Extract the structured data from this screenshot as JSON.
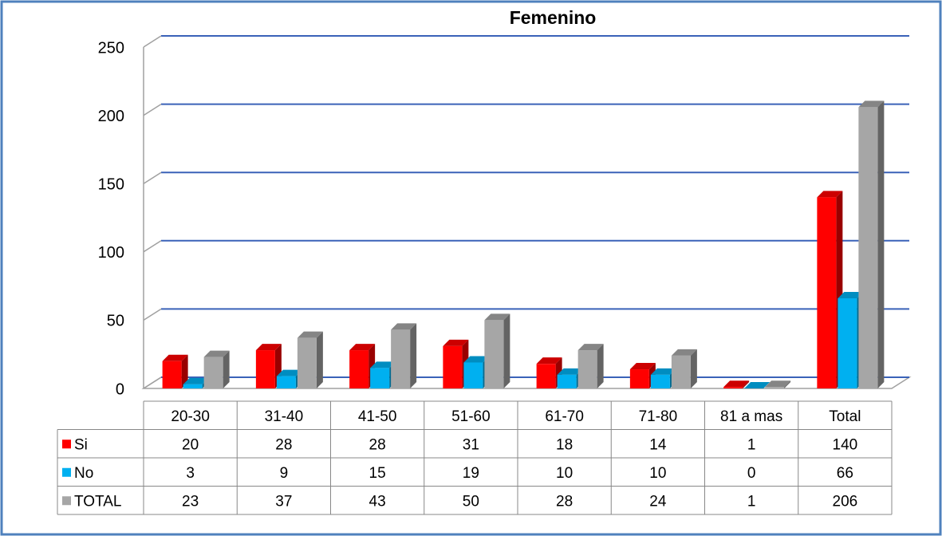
{
  "chart_data": {
    "type": "bar",
    "title": "Femenino",
    "categories": [
      "20-30",
      "31-40",
      "41-50",
      "51-60",
      "61-70",
      "71-80",
      "81 a mas",
      "Total"
    ],
    "series": [
      {
        "name": "Si",
        "color": "#ff0000",
        "values": [
          20,
          28,
          28,
          31,
          18,
          14,
          1,
          140
        ]
      },
      {
        "name": "No",
        "color": "#00b0f0",
        "values": [
          3,
          9,
          15,
          19,
          10,
          10,
          0,
          66
        ]
      },
      {
        "name": "TOTAL",
        "color": "#a6a6a6",
        "values": [
          23,
          37,
          43,
          50,
          28,
          24,
          1,
          206
        ]
      }
    ],
    "ylim": [
      0,
      250
    ],
    "yticks": [
      0,
      50,
      100,
      150,
      200,
      250
    ],
    "grid": true
  }
}
